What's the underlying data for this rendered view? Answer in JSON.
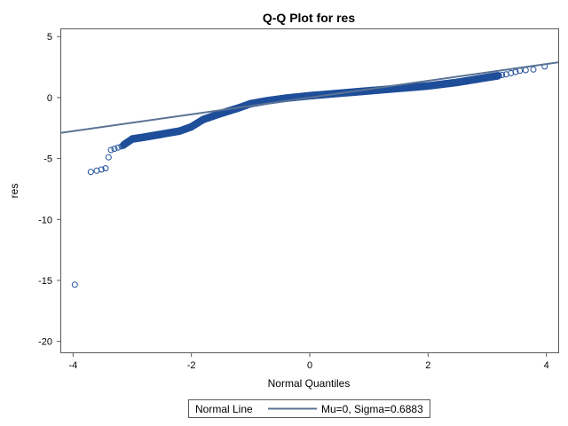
{
  "chart_data": {
    "type": "scatter",
    "title": "Q-Q Plot for res",
    "xlabel": "Normal Quantiles",
    "ylabel": "res",
    "xlim": [
      -4.2,
      4.2
    ],
    "ylim": [
      -20.9,
      5.6
    ],
    "xticks": [
      -4,
      -2,
      0,
      2,
      4
    ],
    "yticks": [
      5,
      0,
      -5,
      -10,
      -15,
      -20
    ],
    "grid": false,
    "legend_position": "bottom",
    "series": [
      {
        "kind": "points",
        "color": "#1f4e9a",
        "outliers": [
          {
            "x": -3.97,
            "y": -15.35
          },
          {
            "x": -3.7,
            "y": -6.1
          },
          {
            "x": -3.6,
            "y": -6.0
          },
          {
            "x": -3.52,
            "y": -5.9
          },
          {
            "x": -3.45,
            "y": -5.8
          },
          {
            "x": -3.4,
            "y": -4.9
          },
          {
            "x": -3.36,
            "y": -4.3
          },
          {
            "x": -3.3,
            "y": -4.2
          },
          {
            "x": -3.24,
            "y": -4.1
          },
          {
            "x": -3.18,
            "y": -4.0
          },
          {
            "x": 3.25,
            "y": 1.85
          },
          {
            "x": 3.32,
            "y": 1.9
          },
          {
            "x": 3.4,
            "y": 2.0
          },
          {
            "x": 3.48,
            "y": 2.1
          },
          {
            "x": 3.55,
            "y": 2.2
          },
          {
            "x": 3.65,
            "y": 2.25
          },
          {
            "x": 3.78,
            "y": 2.3
          },
          {
            "x": 3.97,
            "y": 2.55
          }
        ],
        "curve": [
          {
            "x": -3.15,
            "y": -3.9
          },
          {
            "x": -3.0,
            "y": -3.4
          },
          {
            "x": -2.8,
            "y": -3.25
          },
          {
            "x": -2.5,
            "y": -3.0
          },
          {
            "x": -2.2,
            "y": -2.75
          },
          {
            "x": -2.0,
            "y": -2.4
          },
          {
            "x": -1.8,
            "y": -1.8
          },
          {
            "x": -1.5,
            "y": -1.3
          },
          {
            "x": -1.2,
            "y": -0.85
          },
          {
            "x": -1.0,
            "y": -0.5
          },
          {
            "x": -0.7,
            "y": -0.25
          },
          {
            "x": -0.4,
            "y": -0.05
          },
          {
            "x": 0.0,
            "y": 0.15
          },
          {
            "x": 0.5,
            "y": 0.35
          },
          {
            "x": 1.0,
            "y": 0.55
          },
          {
            "x": 1.5,
            "y": 0.75
          },
          {
            "x": 2.0,
            "y": 0.95
          },
          {
            "x": 2.5,
            "y": 1.25
          },
          {
            "x": 3.0,
            "y": 1.65
          },
          {
            "x": 3.2,
            "y": 1.8
          }
        ]
      },
      {
        "kind": "line",
        "name": "Mu=0, Sigma=0.6883",
        "color": "#5a7394",
        "mu": 0,
        "sigma": 0.6883
      }
    ],
    "legend": {
      "label": "Normal Line",
      "entry": "Mu=0, Sigma=0.6883"
    }
  }
}
